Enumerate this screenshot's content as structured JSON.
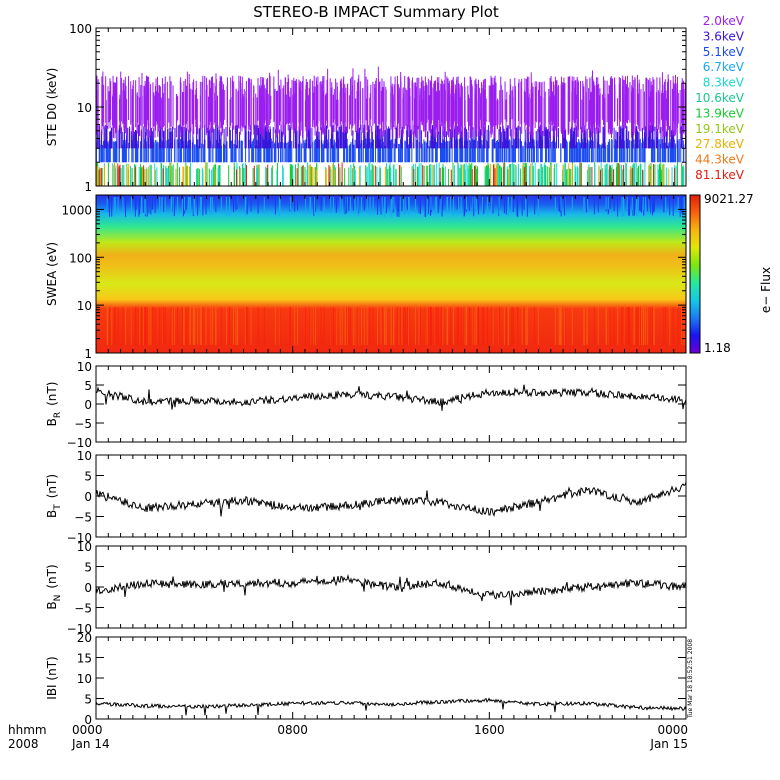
{
  "title": "STEREO-B IMPACT Summary Plot",
  "colors": {
    "energies": [
      "#9a1cf0",
      "#3a12d8",
      "#1a4cf2",
      "#1aa8f2",
      "#18d8d0",
      "#18c890",
      "#16c830",
      "#90c818",
      "#e8b000",
      "#f07818",
      "#e02010"
    ],
    "colorbar": [
      "#6a00d8",
      "#1a14f0",
      "#1a7cf2",
      "#16c8e8",
      "#28e89a",
      "#7ae810",
      "#e0e808",
      "#f8b410",
      "#f86010",
      "#e02008"
    ]
  },
  "chart_data": [
    {
      "type": "heatmap",
      "name": "ste-d0",
      "ylabel": "STE D0 (keV)",
      "yscale": "log",
      "ylim": [
        1,
        100
      ],
      "yticks": [
        "1",
        "10",
        "100"
      ],
      "legend_position": "right",
      "legend": [
        "2.0keV",
        "3.6keV",
        "5.1keV",
        "6.7keV",
        "8.3keV",
        "10.6keV",
        "13.9keV",
        "19.1keV",
        "27.8keV",
        "44.3keV",
        "81.1keV"
      ]
    },
    {
      "type": "heatmap",
      "name": "swea",
      "ylabel": "SWEA (eV)",
      "yscale": "log",
      "ylim": [
        1,
        2000
      ],
      "yticks": [
        "1",
        "10",
        "100",
        "1000"
      ],
      "colorbar": {
        "label": "e− Flux",
        "max": "9021.27",
        "min": "1.18"
      }
    },
    {
      "type": "line",
      "name": "br",
      "ylabel": "B",
      "ylabel_sub": "R",
      "yunit": "(nT)",
      "ylim": [
        -10,
        10
      ],
      "yticks": [
        "−10",
        "−5",
        "0",
        "5",
        "10"
      ],
      "x": [
        0,
        2,
        4,
        6,
        8,
        10,
        12,
        14,
        16,
        18,
        20,
        22,
        24
      ],
      "values": [
        3.5,
        0.5,
        1.0,
        0.5,
        1.5,
        2.5,
        2.0,
        0.5,
        3.0,
        3.0,
        3.0,
        2.0,
        1.0
      ]
    },
    {
      "type": "line",
      "name": "bt",
      "ylabel": "B",
      "ylabel_sub": "T",
      "yunit": "(nT)",
      "ylim": [
        -10,
        10
      ],
      "yticks": [
        "−10",
        "−5",
        "0",
        "5",
        "10"
      ],
      "x": [
        0,
        2,
        4,
        6,
        8,
        10,
        12,
        14,
        16,
        18,
        20,
        22,
        24
      ],
      "values": [
        0.5,
        -3.0,
        -2.0,
        -1.0,
        -3.0,
        -2.5,
        -1.0,
        -1.5,
        -4.0,
        -1.5,
        1.5,
        -1.5,
        2.5
      ]
    },
    {
      "type": "line",
      "name": "bn",
      "ylabel": "B",
      "ylabel_sub": "N",
      "yunit": "(nT)",
      "ylim": [
        -10,
        10
      ],
      "yticks": [
        "−10",
        "−5",
        "0",
        "5",
        "10"
      ],
      "x": [
        0,
        2,
        4,
        6,
        8,
        10,
        12,
        14,
        16,
        18,
        20,
        22,
        24
      ],
      "values": [
        -1.0,
        1.0,
        0.5,
        1.0,
        1.0,
        2.0,
        0.0,
        1.0,
        -2.0,
        -1.0,
        0.0,
        1.0,
        0.0
      ]
    },
    {
      "type": "line",
      "name": "bmag",
      "ylabel": "IBI (nT)",
      "ylim": [
        0,
        20
      ],
      "yticks": [
        "0",
        "5",
        "10",
        "15",
        "20"
      ],
      "x": [
        0,
        2,
        4,
        6,
        8,
        10,
        12,
        14,
        16,
        18,
        20,
        22,
        24
      ],
      "values": [
        3.8,
        3.2,
        3.0,
        3.3,
        3.8,
        4.0,
        3.6,
        4.2,
        4.6,
        3.6,
        3.8,
        2.8,
        2.5
      ]
    }
  ],
  "time_axis": {
    "row1_label": "hhmm",
    "row2_label": "2008",
    "ticks": [
      {
        "hour": 0,
        "time": "0000",
        "date": "Jan 14"
      },
      {
        "hour": 8,
        "time": "0800",
        "date": ""
      },
      {
        "hour": 16,
        "time": "1600",
        "date": ""
      },
      {
        "hour": 24,
        "time": "0000",
        "date": "Jan 15"
      }
    ]
  },
  "timestamp": "Tue Mar 18 18:52:51 2008"
}
